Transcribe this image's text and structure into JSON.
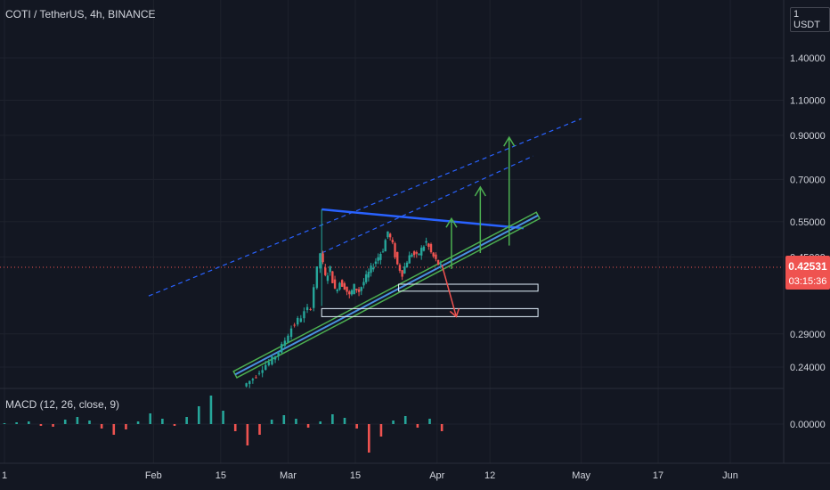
{
  "header": {
    "title": "COTI / TetherUS, 4h, BINANCE",
    "currency": "1 USDT"
  },
  "indicator": {
    "label": "MACD (12, 26, close, 9)",
    "zero_label": "0.00000"
  },
  "price_tag": {
    "price": "0.42531",
    "countdown": "03:15:36"
  },
  "colors": {
    "background": "#131722",
    "up": "#26a69a",
    "down": "#ef5350",
    "trend_blue": "#2962ff",
    "trend_green": "#4caf50",
    "arrow_green": "#4caf50",
    "arrow_red": "#ef5350",
    "price_line": "#ef5350"
  },
  "chart_data": {
    "type": "candlestick",
    "symbol": "COTI / TetherUS",
    "interval": "4h",
    "exchange": "BINANCE",
    "y_axis_labels": [
      "1.40000",
      "1.10000",
      "0.90000",
      "0.70000",
      "0.55000",
      "0.45000",
      "0.29000",
      "0.24000"
    ],
    "x_axis_labels": [
      "1",
      "Feb",
      "15",
      "Mar",
      "15",
      "Apr",
      "12",
      "May",
      "17",
      "Jun"
    ],
    "last_price": 0.42531,
    "price_series": [
      [
        "Feb 20",
        0.215
      ],
      [
        "Feb 22",
        0.225
      ],
      [
        "Feb 24",
        0.24
      ],
      [
        "Feb 26",
        0.25
      ],
      [
        "Feb 28",
        0.27
      ],
      [
        "Mar 2",
        0.3
      ],
      [
        "Mar 4",
        0.32
      ],
      [
        "Mar 6",
        0.34
      ],
      [
        "Mar 8",
        0.46
      ],
      [
        "Mar 9",
        0.4
      ],
      [
        "Mar 10",
        0.42
      ],
      [
        "Mar 11",
        0.37
      ],
      [
        "Mar 12",
        0.39
      ],
      [
        "Mar 13",
        0.38
      ],
      [
        "Mar 14",
        0.36
      ],
      [
        "Mar 15",
        0.38
      ],
      [
        "Mar 16",
        0.37
      ],
      [
        "Mar 17",
        0.39
      ],
      [
        "Mar 18",
        0.41
      ],
      [
        "Mar 19",
        0.43
      ],
      [
        "Mar 20",
        0.45
      ],
      [
        "Mar 21",
        0.47
      ],
      [
        "Mar 22",
        0.52
      ],
      [
        "Mar 23",
        0.48
      ],
      [
        "Mar 24",
        0.43
      ],
      [
        "Mar 25",
        0.41
      ],
      [
        "Mar 26",
        0.44
      ],
      [
        "Mar 27",
        0.46
      ],
      [
        "Mar 28",
        0.45
      ],
      [
        "Mar 29",
        0.47
      ],
      [
        "Mar 30",
        0.49
      ],
      [
        "Mar 31",
        0.46
      ],
      [
        "Apr 1",
        0.44
      ],
      [
        "Apr 2",
        0.425
      ]
    ],
    "macd_histogram": [
      0.1,
      0.2,
      0.3,
      -0.2,
      -0.3,
      0.5,
      0.8,
      0.4,
      -0.5,
      -1.2,
      -0.6,
      0.3,
      1.2,
      0.6,
      -0.2,
      0.8,
      2.0,
      3.2,
      1.5,
      -0.8,
      -2.4,
      -1.2,
      0.5,
      1.0,
      0.6,
      -0.4,
      0.3,
      1.1,
      0.7,
      -0.5,
      -3.2,
      -1.4,
      0.4,
      0.9,
      -0.4,
      0.6,
      -0.8
    ],
    "trendlines": [
      {
        "kind": "dashed",
        "from": [
          "Jan 31",
          0.36
        ],
        "to": [
          "May 1",
          0.99
        ]
      },
      {
        "kind": "dashed",
        "from": [
          "Mar 8",
          0.46
        ],
        "to": [
          "Apr 21",
          0.8
        ]
      },
      {
        "kind": "solid",
        "from": [
          "Mar 8",
          0.59
        ],
        "to": [
          "Apr 19",
          0.53
        ]
      },
      {
        "kind": "channel",
        "from": [
          "Feb 18",
          0.23
        ],
        "to": [
          "Apr 22",
          0.57
        ]
      }
    ],
    "boxes": [
      {
        "from": [
          "Mar 24",
          0.385
        ],
        "to": [
          "Apr 22",
          0.37
        ]
      },
      {
        "from": [
          "Mar 8",
          0.335
        ],
        "to": [
          "Apr 22",
          0.32
        ]
      }
    ],
    "target_arrows": [
      {
        "at": "Apr 4",
        "from": 0.42,
        "to": 0.56
      },
      {
        "at": "Apr 10",
        "from": 0.46,
        "to": 0.67
      },
      {
        "at": "Apr 16",
        "from": 0.48,
        "to": 0.89
      }
    ],
    "down_arrow": {
      "from": [
        "Apr 2",
        0.43
      ],
      "to": [
        "Apr 5",
        0.32
      ]
    }
  }
}
